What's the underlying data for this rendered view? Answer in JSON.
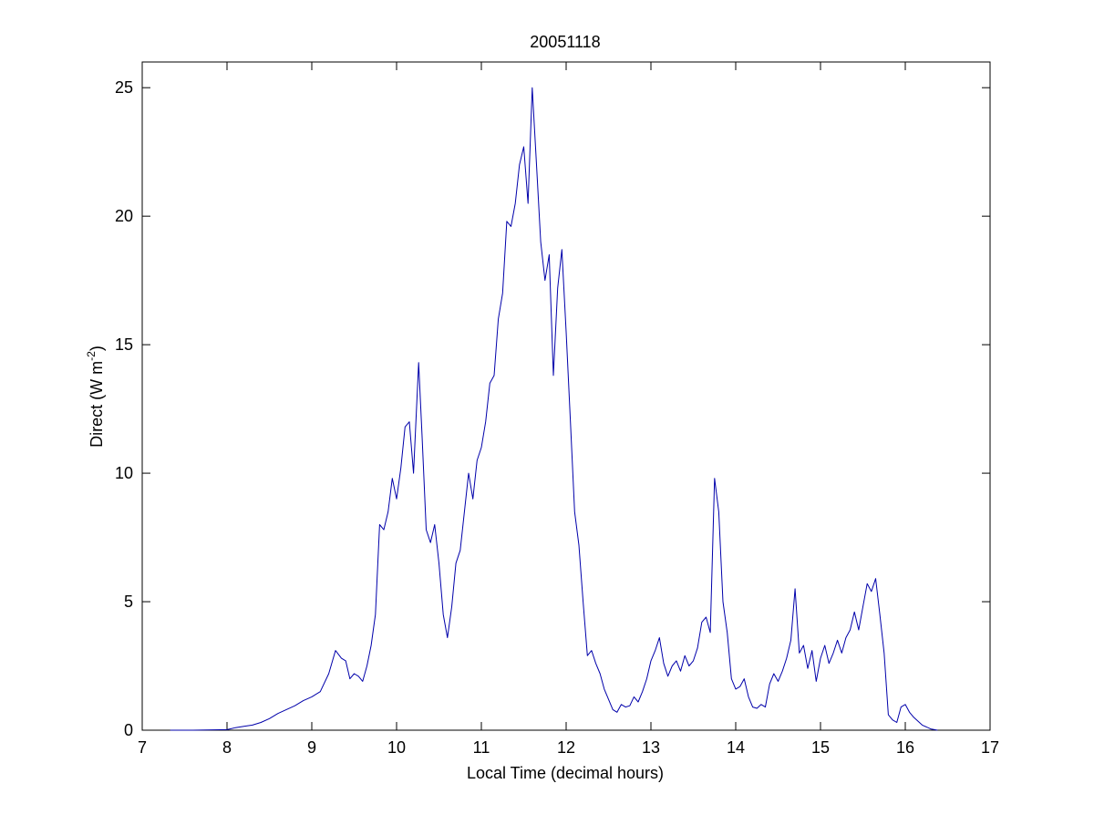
{
  "chart_data": {
    "type": "line",
    "title": "20051118",
    "xlabel": "Local Time (decimal hours)",
    "ylabel_main": "Direct (W m",
    "ylabel_sup": "-2",
    "ylabel_close": ")",
    "xlim": [
      7,
      17
    ],
    "ylim": [
      0,
      26
    ],
    "xticks": [
      7,
      8,
      9,
      10,
      11,
      12,
      13,
      14,
      15,
      16,
      17
    ],
    "yticks": [
      0,
      5,
      10,
      15,
      20,
      25
    ],
    "grid": false,
    "line_color": "#0000aa",
    "x": [
      7.33,
      7.6,
      8.0,
      8.1,
      8.2,
      8.3,
      8.4,
      8.5,
      8.6,
      8.7,
      8.8,
      8.9,
      9.0,
      9.1,
      9.2,
      9.28,
      9.35,
      9.4,
      9.45,
      9.5,
      9.55,
      9.6,
      9.65,
      9.7,
      9.75,
      9.8,
      9.85,
      9.9,
      9.95,
      10.0,
      10.05,
      10.1,
      10.15,
      10.2,
      10.26,
      10.3,
      10.35,
      10.4,
      10.45,
      10.5,
      10.55,
      10.6,
      10.65,
      10.7,
      10.75,
      10.8,
      10.85,
      10.9,
      10.95,
      11.0,
      11.05,
      11.1,
      11.15,
      11.2,
      11.25,
      11.3,
      11.35,
      11.4,
      11.45,
      11.5,
      11.55,
      11.6,
      11.65,
      11.7,
      11.75,
      11.8,
      11.85,
      11.9,
      11.95,
      12.0,
      12.05,
      12.1,
      12.15,
      12.2,
      12.25,
      12.3,
      12.35,
      12.4,
      12.45,
      12.5,
      12.55,
      12.6,
      12.65,
      12.7,
      12.75,
      12.8,
      12.85,
      12.9,
      12.95,
      13.0,
      13.05,
      13.1,
      13.15,
      13.2,
      13.25,
      13.3,
      13.35,
      13.4,
      13.45,
      13.5,
      13.55,
      13.6,
      13.65,
      13.7,
      13.75,
      13.8,
      13.85,
      13.9,
      13.95,
      14.0,
      14.05,
      14.1,
      14.15,
      14.2,
      14.25,
      14.3,
      14.35,
      14.4,
      14.45,
      14.5,
      14.55,
      14.6,
      14.65,
      14.7,
      14.75,
      14.8,
      14.85,
      14.9,
      14.95,
      15.0,
      15.05,
      15.1,
      15.15,
      15.2,
      15.25,
      15.3,
      15.35,
      15.4,
      15.45,
      15.5,
      15.55,
      15.6,
      15.65,
      15.7,
      15.75,
      15.8,
      15.85,
      15.9,
      15.95,
      16.0,
      16.05,
      16.1,
      16.2,
      16.3,
      16.38
    ],
    "y": [
      0.0,
      0.0,
      0.02,
      0.1,
      0.15,
      0.2,
      0.3,
      0.45,
      0.65,
      0.8,
      0.95,
      1.15,
      1.3,
      1.5,
      2.2,
      3.1,
      2.8,
      2.7,
      2.0,
      2.2,
      2.1,
      1.9,
      2.5,
      3.3,
      4.5,
      8.0,
      7.8,
      8.5,
      9.8,
      9.0,
      10.2,
      11.8,
      12.0,
      10.0,
      14.3,
      11.5,
      7.8,
      7.3,
      8.0,
      6.5,
      4.5,
      3.6,
      4.8,
      6.5,
      7.0,
      8.5,
      10.0,
      9.0,
      10.5,
      11.0,
      12.0,
      13.5,
      13.8,
      16.0,
      17.0,
      19.8,
      19.6,
      20.5,
      22.0,
      22.7,
      20.5,
      25.0,
      22.0,
      19.0,
      17.5,
      18.5,
      13.8,
      17.2,
      18.7,
      15.5,
      12.0,
      8.5,
      7.2,
      5.0,
      2.9,
      3.1,
      2.6,
      2.2,
      1.6,
      1.2,
      0.8,
      0.7,
      1.0,
      0.9,
      0.95,
      1.3,
      1.1,
      1.5,
      2.0,
      2.7,
      3.1,
      3.6,
      2.6,
      2.1,
      2.5,
      2.7,
      2.3,
      2.9,
      2.5,
      2.7,
      3.2,
      4.2,
      4.4,
      3.8,
      9.8,
      8.5,
      5.0,
      3.8,
      2.0,
      1.6,
      1.7,
      2.0,
      1.3,
      0.9,
      0.85,
      1.0,
      0.9,
      1.8,
      2.2,
      1.9,
      2.3,
      2.8,
      3.5,
      5.5,
      3.0,
      3.3,
      2.4,
      3.1,
      1.9,
      2.8,
      3.3,
      2.6,
      3.0,
      3.5,
      3.0,
      3.6,
      3.9,
      4.6,
      3.9,
      4.8,
      5.7,
      5.4,
      5.9,
      4.5,
      3.0,
      0.6,
      0.4,
      0.3,
      0.9,
      1.0,
      0.7,
      0.5,
      0.2,
      0.05,
      0.0
    ]
  }
}
